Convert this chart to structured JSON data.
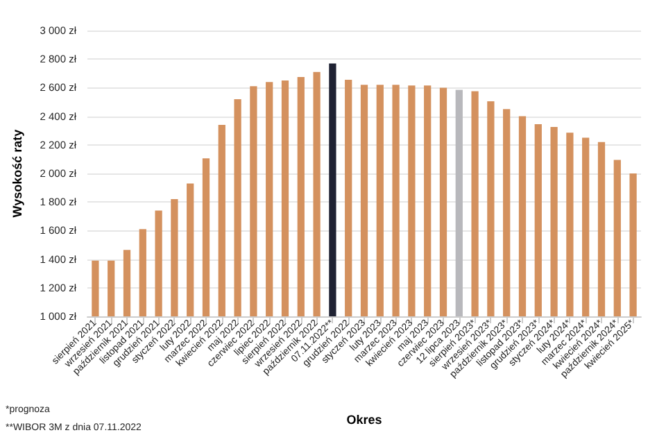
{
  "chart_data": {
    "type": "bar",
    "xlabel": "Okres",
    "ylabel": "Wysokość raty",
    "categories": [
      "sierpień 2021",
      "wrzesień 2021",
      "październik 2021",
      "listopad 2021",
      "grudzień 2021",
      "styczeń 2022",
      "luty 2022",
      "marzec 2022",
      "kwiecień 2022",
      "maj 2022",
      "czerwiec 2022",
      "lipiec 2022",
      "sierpień 2022",
      "wrzesień 2022",
      "październik 2022",
      "07.11.2022**",
      "grudzień 2022",
      "styczeń 2023",
      "luty 2023",
      "marzec 2023",
      "kwiecień 2023",
      "maj 2023",
      "czerwiec 2023",
      "12 lipca 2023",
      "sierpień 2023*",
      "wrzesień 2023*",
      "październik 2023*",
      "listopad 2023*",
      "grudzień 2023*",
      "styczeń 2024*",
      "luty 2024*",
      "marzec 2024*",
      "kwiecień 2024*",
      "październik 2024*",
      "kwiecień 2025*"
    ],
    "values": [
      1390,
      1390,
      1465,
      1610,
      1740,
      1820,
      1930,
      2105,
      2340,
      2520,
      2610,
      2640,
      2650,
      2675,
      2710,
      2770,
      2655,
      2620,
      2620,
      2620,
      2615,
      2615,
      2600,
      2585,
      2575,
      2505,
      2450,
      2400,
      2345,
      2325,
      2285,
      2250,
      2220,
      2095,
      2000
    ],
    "colors": [
      "#d4915e",
      "#d4915e",
      "#d4915e",
      "#d4915e",
      "#d4915e",
      "#d4915e",
      "#d4915e",
      "#d4915e",
      "#d4915e",
      "#d4915e",
      "#d4915e",
      "#d4915e",
      "#d4915e",
      "#d4915e",
      "#d4915e",
      "#1f2233",
      "#d4915e",
      "#d4915e",
      "#d4915e",
      "#d4915e",
      "#d4915e",
      "#d4915e",
      "#d4915e",
      "#b8b8bc",
      "#d4915e",
      "#d4915e",
      "#d4915e",
      "#d4915e",
      "#d4915e",
      "#d4915e",
      "#d4915e",
      "#d4915e",
      "#d4915e",
      "#d4915e",
      "#d4915e"
    ],
    "ylim": [
      1000,
      3000
    ],
    "yticks": [
      {
        "value": 1000,
        "label": "1 000 zł"
      },
      {
        "value": 1200,
        "label": "1 200 zł"
      },
      {
        "value": 1400,
        "label": "1 400 zł"
      },
      {
        "value": 1600,
        "label": "1 600 zł"
      },
      {
        "value": 1800,
        "label": "1 800 zł"
      },
      {
        "value": 2000,
        "label": "2 000 zł"
      },
      {
        "value": 2200,
        "label": "2 200 zł"
      },
      {
        "value": 2400,
        "label": "2 400 zł"
      },
      {
        "value": 2600,
        "label": "2 600 zł"
      },
      {
        "value": 2800,
        "label": "2 800 zł"
      },
      {
        "value": 3000,
        "label": "3 000 zł"
      }
    ],
    "grid": "y",
    "annotations": [
      "*prognoza",
      "**WIBOR 3M z dnia 07.11.2022"
    ]
  }
}
